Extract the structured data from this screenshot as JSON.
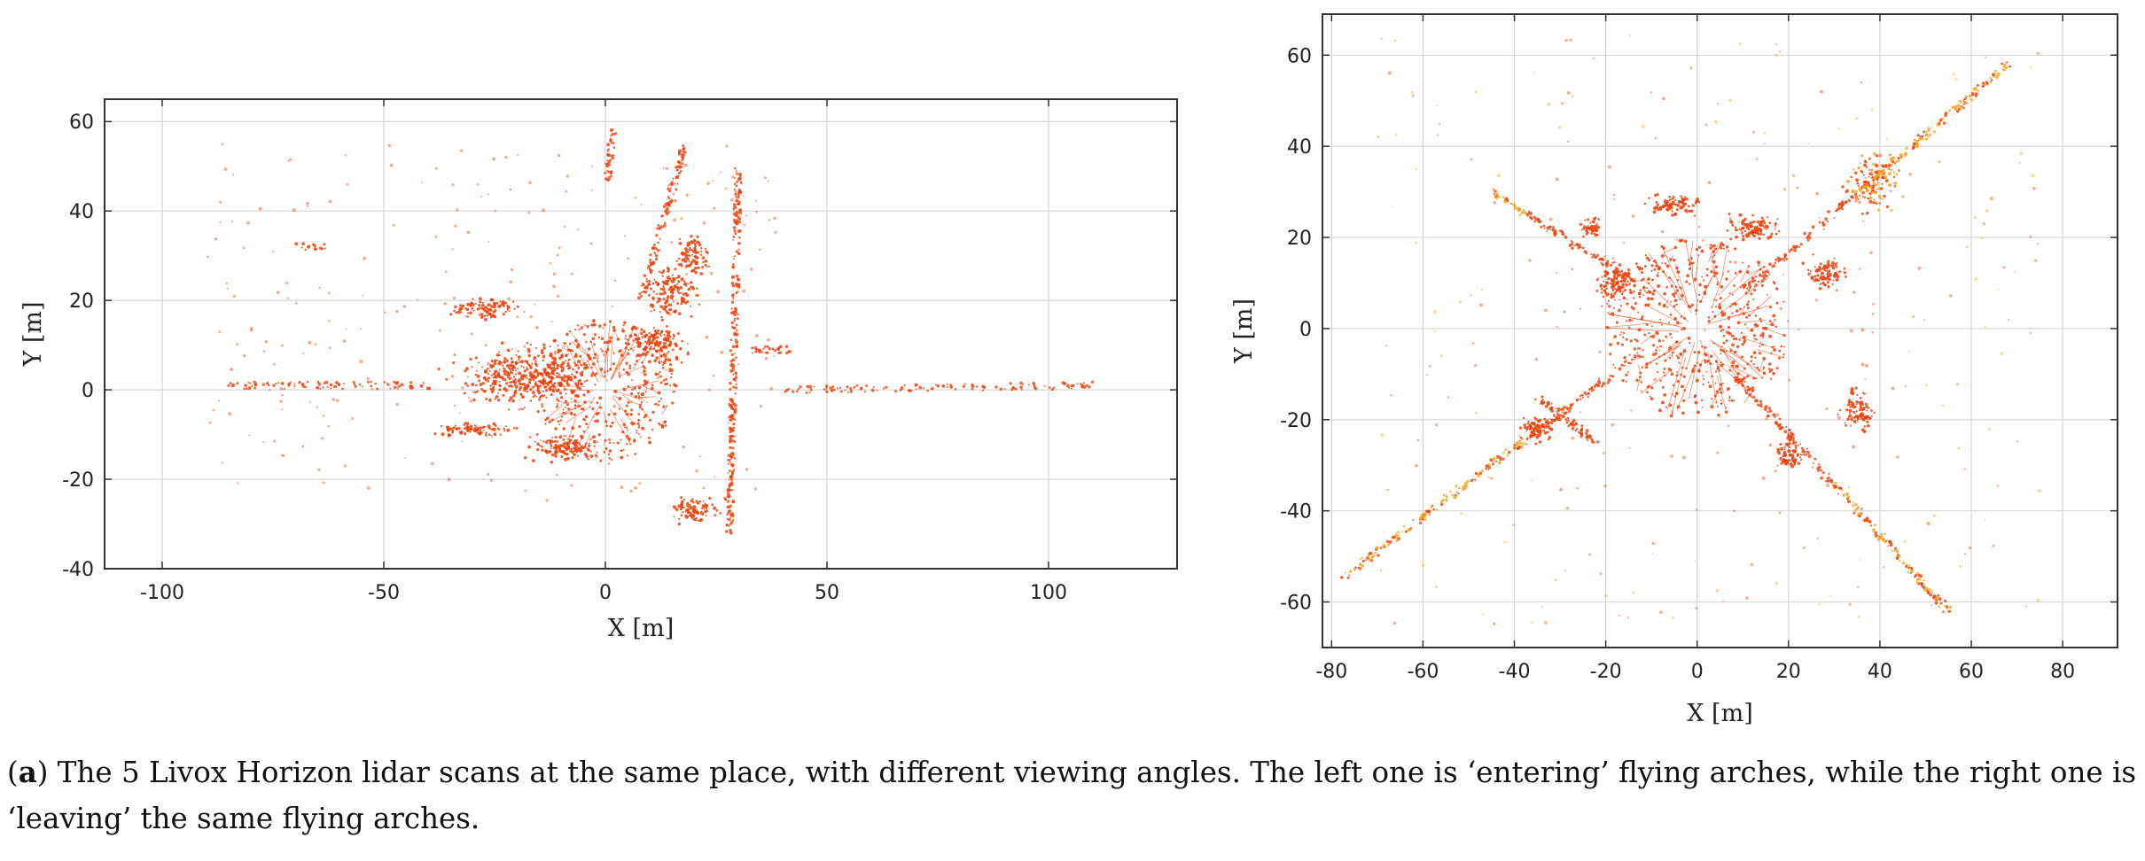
{
  "chart_data": [
    {
      "type": "scatter",
      "title": "",
      "xlabel": "X [m]",
      "ylabel": "Y [m]",
      "xlim": [
        -113,
        129
      ],
      "ylim": [
        -40,
        65
      ],
      "xticks": [
        -100,
        -50,
        0,
        50,
        100
      ],
      "yticks": [
        60,
        40,
        20,
        0,
        -20,
        -40
      ],
      "xtick_labels": [
        "-100",
        "-50",
        "0",
        "50",
        "100"
      ],
      "ytick_labels": [
        "60",
        "40",
        "20",
        "0",
        "-20",
        "-40"
      ],
      "grid": true,
      "legend": "none",
      "point_color": "#e8440e",
      "center": [
        0,
        0
      ],
      "features": [
        {
          "kind": "radial",
          "count": 420,
          "maxr": 14,
          "spread": 0.55
        },
        {
          "kind": "blob",
          "x": -18,
          "y": 3,
          "w": 22,
          "h": 9,
          "n": 420
        },
        {
          "kind": "blob",
          "x": -10,
          "y": -13,
          "w": 10,
          "h": 4,
          "n": 120
        },
        {
          "kind": "blob",
          "x": -27,
          "y": 18,
          "w": 10,
          "h": 3,
          "n": 100
        },
        {
          "kind": "blob",
          "x": -30,
          "y": -9,
          "w": 12,
          "h": 2,
          "n": 80
        },
        {
          "kind": "blob",
          "x": 15,
          "y": 22,
          "w": 8,
          "h": 8,
          "n": 160
        },
        {
          "kind": "blob",
          "x": 20,
          "y": 30,
          "w": 5,
          "h": 6,
          "n": 90
        },
        {
          "kind": "blob",
          "x": 20,
          "y": -27,
          "w": 8,
          "h": 4,
          "n": 90
        },
        {
          "kind": "blob",
          "x": 12,
          "y": 10,
          "w": 9,
          "h": 6,
          "n": 140
        },
        {
          "kind": "line",
          "x1": 30,
          "y1": 50,
          "x2": 28,
          "y2": -32,
          "n": 280
        },
        {
          "kind": "line",
          "x1": 18,
          "y1": 55,
          "x2": 8,
          "y2": 20,
          "n": 120
        },
        {
          "kind": "line",
          "x1": 2,
          "y1": 58,
          "x2": 0,
          "y2": 45,
          "n": 40
        },
        {
          "kind": "line",
          "x1": -85,
          "y1": 1,
          "x2": -40,
          "y2": 1,
          "n": 90
        },
        {
          "kind": "line",
          "x1": 40,
          "y1": 0,
          "x2": 110,
          "y2": 1,
          "n": 120
        },
        {
          "kind": "line",
          "x1": 32,
          "y1": 9,
          "x2": 42,
          "y2": 9,
          "n": 30
        },
        {
          "kind": "line",
          "x1": -70,
          "y1": 32,
          "x2": -62,
          "y2": 32,
          "n": 15
        },
        {
          "kind": "scatter",
          "x": [
            -90,
            40
          ],
          "y": [
            -25,
            55
          ],
          "n": 260
        }
      ]
    },
    {
      "type": "scatter",
      "title": "",
      "xlabel": "X [m]",
      "ylabel": "Y [m]",
      "xlim": [
        -82,
        92
      ],
      "ylim": [
        -70,
        69
      ],
      "xticks": [
        -80,
        -60,
        -40,
        -20,
        0,
        20,
        40,
        60,
        80
      ],
      "yticks": [
        60,
        40,
        20,
        0,
        -20,
        -40,
        -60
      ],
      "xtick_labels": [
        "-80",
        "-60",
        "-40",
        "-20",
        "0",
        "20",
        "40",
        "60",
        "80"
      ],
      "ytick_labels": [
        "60",
        "40",
        "20",
        "0",
        "-20",
        "-40",
        "-60"
      ],
      "grid": true,
      "legend": "none",
      "point_color": "#e8440e",
      "point_color_far": "#f5a623",
      "center": [
        0,
        0
      ],
      "features": [
        {
          "kind": "radial",
          "count": 520,
          "maxr": 18,
          "spread": 0.6
        },
        {
          "kind": "line",
          "x1": -78,
          "y1": -55,
          "x2": -12,
          "y2": -5,
          "n": 260
        },
        {
          "kind": "line",
          "x1": 10,
          "y1": 8,
          "x2": 68,
          "y2": 58,
          "n": 260
        },
        {
          "kind": "line",
          "x1": -45,
          "y1": 30,
          "x2": -10,
          "y2": 8,
          "n": 140
        },
        {
          "kind": "line",
          "x1": 8,
          "y1": -10,
          "x2": 55,
          "y2": -62,
          "n": 260
        },
        {
          "kind": "line",
          "x1": -35,
          "y1": -15,
          "x2": -22,
          "y2": -25,
          "n": 80
        },
        {
          "kind": "blob",
          "x": -18,
          "y": 10,
          "w": 5,
          "h": 7,
          "n": 110
        },
        {
          "kind": "blob",
          "x": -5,
          "y": 27,
          "w": 8,
          "h": 3,
          "n": 90
        },
        {
          "kind": "blob",
          "x": 12,
          "y": 22,
          "w": 8,
          "h": 4,
          "n": 110
        },
        {
          "kind": "blob",
          "x": 28,
          "y": 12,
          "w": 6,
          "h": 5,
          "n": 100
        },
        {
          "kind": "blob",
          "x": 38,
          "y": 32,
          "w": 8,
          "h": 8,
          "n": 130
        },
        {
          "kind": "blob",
          "x": -23,
          "y": 22,
          "w": 3,
          "h": 3,
          "n": 50
        },
        {
          "kind": "blob",
          "x": -35,
          "y": -22,
          "w": 5,
          "h": 4,
          "n": 80
        },
        {
          "kind": "blob",
          "x": 35,
          "y": -18,
          "w": 5,
          "h": 6,
          "n": 90
        },
        {
          "kind": "blob",
          "x": 20,
          "y": -28,
          "w": 4,
          "h": 4,
          "n": 70
        },
        {
          "kind": "scatter",
          "x": [
            -70,
            75
          ],
          "y": [
            -65,
            65
          ],
          "n": 280
        }
      ]
    }
  ],
  "caption": {
    "label": "a",
    "open": "(",
    "close": ")",
    "text": " The 5 Livox Horizon lidar scans at the same place, with different viewing angles. The left one is ‘entering’ flying arches, while the right one is ‘leaving’ the same flying arches."
  }
}
